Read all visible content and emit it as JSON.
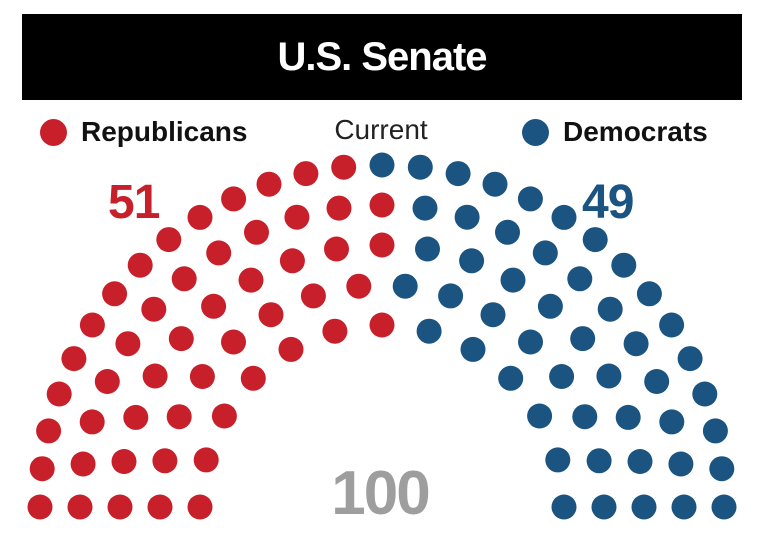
{
  "chart_data": {
    "type": "parliament",
    "title": "U.S. Senate",
    "subtitle": "Current",
    "total": "100",
    "series": [
      {
        "name": "Republicans",
        "value": "51",
        "color": "#c8202a"
      },
      {
        "name": "Democrats",
        "value": "49",
        "color": "#1b5480"
      }
    ],
    "total_color": "#9e9e9e",
    "row_counts": [
      13,
      16,
      19,
      23,
      29
    ]
  }
}
